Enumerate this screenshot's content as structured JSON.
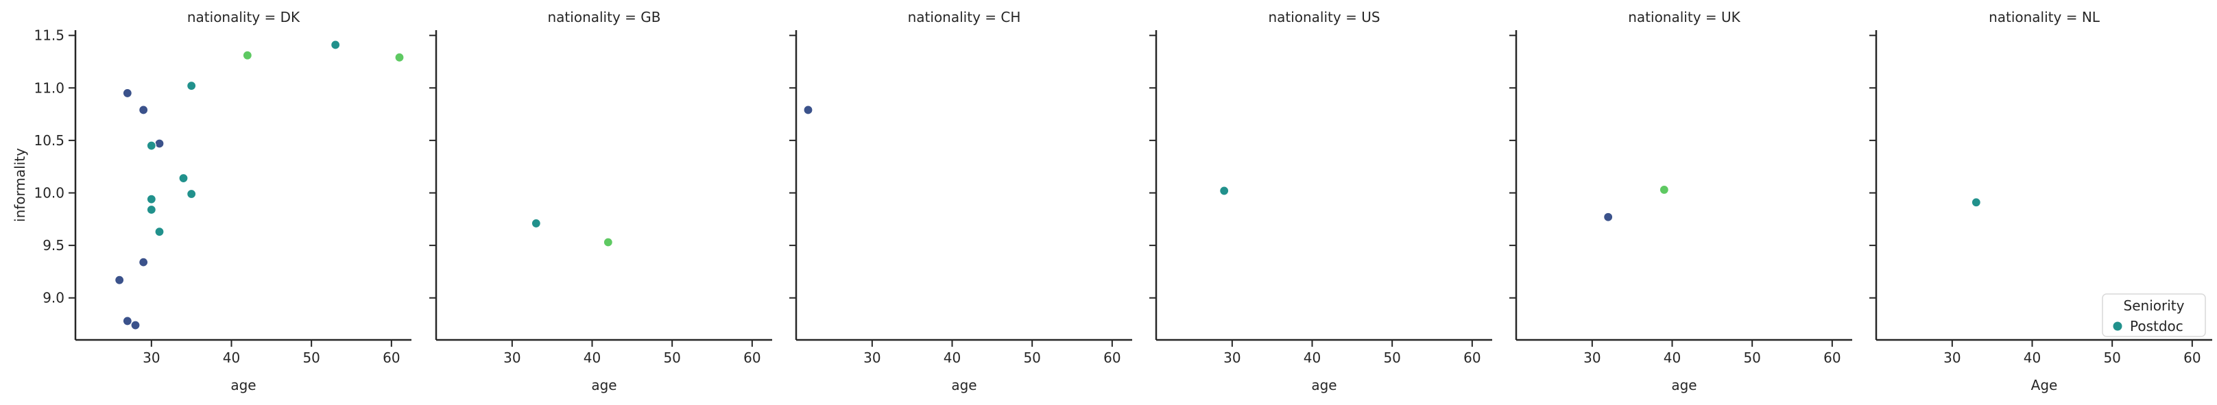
{
  "chart_data": {
    "type": "scatter",
    "ylabel": "informality",
    "ylim": [
      8.6,
      11.55
    ],
    "xlim": [
      20.5,
      62.5
    ],
    "yticks": [
      9.0,
      9.5,
      10.0,
      10.5,
      11.0,
      11.5
    ],
    "ytick_labels": [
      "9.0",
      "9.5",
      "10.0",
      "10.5",
      "11.0",
      "11.5"
    ],
    "xticks": [
      30,
      40,
      50,
      60
    ],
    "xtick_labels": [
      "30",
      "40",
      "50",
      "60"
    ],
    "colors": {
      "dark_blue": "#3b528b",
      "teal": "#21918c",
      "green": "#5ec962"
    },
    "legend": {
      "title": "Seniority",
      "entries": [
        {
          "label": "Postdoc",
          "color": "#21918c"
        }
      ],
      "position": "lower-right"
    },
    "panels": [
      {
        "title": "nationality = DK",
        "xlabel": "age",
        "points": [
          {
            "x": 42,
            "y": 11.31,
            "color": "green"
          },
          {
            "x": 53,
            "y": 11.41,
            "color": "teal"
          },
          {
            "x": 61,
            "y": 11.29,
            "color": "green"
          },
          {
            "x": 27,
            "y": 10.95,
            "color": "dark_blue"
          },
          {
            "x": 35,
            "y": 11.02,
            "color": "teal"
          },
          {
            "x": 29,
            "y": 10.79,
            "color": "dark_blue"
          },
          {
            "x": 31,
            "y": 10.47,
            "color": "dark_blue"
          },
          {
            "x": 30,
            "y": 10.45,
            "color": "teal"
          },
          {
            "x": 34,
            "y": 10.14,
            "color": "teal"
          },
          {
            "x": 35,
            "y": 9.99,
            "color": "teal"
          },
          {
            "x": 30,
            "y": 9.94,
            "color": "teal"
          },
          {
            "x": 30,
            "y": 9.84,
            "color": "teal"
          },
          {
            "x": 31,
            "y": 9.63,
            "color": "teal"
          },
          {
            "x": 29,
            "y": 9.34,
            "color": "dark_blue"
          },
          {
            "x": 26,
            "y": 9.17,
            "color": "dark_blue"
          },
          {
            "x": 27,
            "y": 8.78,
            "color": "dark_blue"
          },
          {
            "x": 28,
            "y": 8.74,
            "color": "dark_blue"
          }
        ]
      },
      {
        "title": "nationality = GB",
        "xlabel": "age",
        "points": [
          {
            "x": 33,
            "y": 9.71,
            "color": "teal"
          },
          {
            "x": 42,
            "y": 9.53,
            "color": "green"
          }
        ]
      },
      {
        "title": "nationality = CH",
        "xlabel": "age",
        "points": [
          {
            "x": 22,
            "y": 10.79,
            "color": "dark_blue"
          }
        ]
      },
      {
        "title": "nationality = US",
        "xlabel": "age",
        "points": [
          {
            "x": 29,
            "y": 10.02,
            "color": "teal"
          }
        ]
      },
      {
        "title": "nationality = UK",
        "xlabel": "age",
        "points": [
          {
            "x": 32,
            "y": 9.77,
            "color": "dark_blue"
          },
          {
            "x": 39,
            "y": 10.03,
            "color": "green"
          }
        ]
      },
      {
        "title": "nationality = NL",
        "xlabel": "Age",
        "points": [
          {
            "x": 33,
            "y": 9.91,
            "color": "teal"
          }
        ]
      }
    ]
  }
}
